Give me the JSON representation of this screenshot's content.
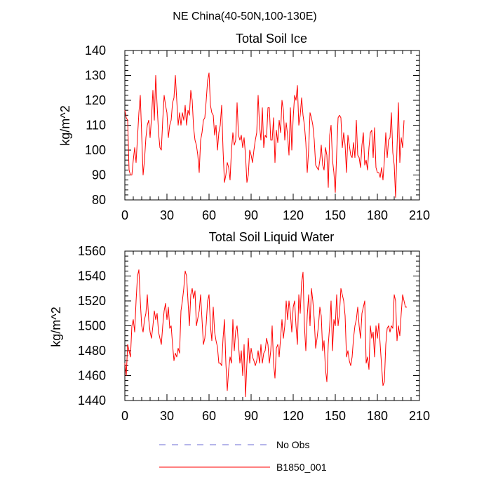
{
  "figure": {
    "suptitle": "NE China(40-50N,100-130E)"
  },
  "legend": {
    "entries": [
      {
        "label": "No Obs",
        "color": "#6b6bd6",
        "style": "dashed"
      },
      {
        "label": "B1850_001",
        "color": "#ff0000",
        "style": "solid"
      }
    ]
  },
  "chart_data": [
    {
      "type": "line",
      "title": "Total Soil Ice",
      "xlabel": "",
      "ylabel": "kg/m^2",
      "xlim": [
        0,
        210
      ],
      "ylim": [
        80,
        140
      ],
      "xticks": [
        0,
        30,
        60,
        90,
        120,
        150,
        180,
        210
      ],
      "yticks": [
        80,
        90,
        100,
        110,
        120,
        130,
        140
      ],
      "series": [
        {
          "name": "B1850_001",
          "color": "#ff0000",
          "x_start": 0,
          "x_step": 1,
          "values": [
            116,
            113,
            112,
            92,
            90,
            90,
            96,
            101,
            95,
            105,
            115,
            122,
            106,
            90,
            96,
            105,
            110,
            112,
            105,
            113,
            124,
            112,
            130,
            118,
            107,
            101,
            100,
            112,
            122,
            118,
            115,
            105,
            110,
            112,
            119,
            121,
            130,
            120,
            110,
            115,
            110,
            115,
            112,
            118,
            110,
            116,
            114,
            124,
            120,
            109,
            104,
            102,
            98,
            91,
            104,
            107,
            112,
            113,
            120,
            128,
            131,
            118,
            115,
            114,
            106,
            110,
            100,
            107,
            110,
            118,
            100,
            87,
            90,
            95,
            93,
            88,
            100,
            107,
            102,
            104,
            119,
            106,
            104,
            106,
            101,
            105,
            98,
            87,
            90,
            100,
            98,
            95,
            100,
            104,
            107,
            122,
            110,
            104,
            117,
            101,
            106,
            105,
            117,
            117,
            104,
            104,
            113,
            95,
            108,
            103,
            112,
            107,
            120,
            116,
            104,
            111,
            106,
            98,
            117,
            100,
            113,
            122,
            120,
            126,
            110,
            114,
            121,
            114,
            110,
            103,
            91,
            100,
            115,
            113,
            110,
            104,
            94,
            93,
            92,
            96,
            102,
            94,
            92,
            101,
            98,
            85,
            106,
            110,
            96,
            91,
            83,
            99,
            113,
            114,
            113,
            101,
            107,
            102,
            91,
            106,
            102,
            98,
            97,
            103,
            97,
            112,
            98,
            97,
            93,
            102,
            107,
            94,
            96,
            92,
            101,
            107,
            108,
            97,
            109,
            93,
            91,
            91,
            89,
            93,
            88,
            96,
            107,
            97,
            104,
            105,
            115,
            99,
            94,
            81,
            101,
            119,
            95,
            105,
            101,
            112
          ]
        }
      ]
    },
    {
      "type": "line",
      "title": "Total Soil Liquid Water",
      "xlabel": "",
      "ylabel": "kg/m^2",
      "xlim": [
        0,
        210
      ],
      "ylim": [
        1440,
        1560
      ],
      "xticks": [
        0,
        30,
        60,
        90,
        120,
        150,
        180,
        210
      ],
      "yticks": [
        1440,
        1460,
        1480,
        1500,
        1520,
        1540,
        1560
      ],
      "series": [
        {
          "name": "B1850_001",
          "color": "#ff0000",
          "x_start": 0,
          "x_step": 1,
          "values": [
            1470,
            1460,
            1485,
            1480,
            1475,
            1500,
            1505,
            1495,
            1520,
            1540,
            1545,
            1520,
            1500,
            1495,
            1505,
            1510,
            1525,
            1505,
            1495,
            1490,
            1500,
            1512,
            1505,
            1510,
            1495,
            1490,
            1485,
            1500,
            1512,
            1518,
            1505,
            1515,
            1498,
            1500,
            1485,
            1472,
            1478,
            1475,
            1482,
            1478,
            1512,
            1520,
            1530,
            1544,
            1540,
            1520,
            1500,
            1525,
            1530,
            1522,
            1528,
            1500,
            1506,
            1512,
            1525,
            1505,
            1485,
            1490,
            1502,
            1520,
            1525,
            1500,
            1488,
            1515,
            1495,
            1488,
            1483,
            1470,
            1470,
            1468,
            1490,
            1505,
            1470,
            1448,
            1465,
            1475,
            1470,
            1505,
            1480,
            1496,
            1500,
            1485,
            1470,
            1480,
            1460,
            1485,
            1443,
            1470,
            1490,
            1470,
            1482,
            1475,
            1472,
            1468,
            1472,
            1480,
            1470,
            1485,
            1470,
            1478,
            1480,
            1490,
            1485,
            1470,
            1480,
            1500,
            1470,
            1458,
            1482,
            1485,
            1475,
            1490,
            1505,
            1490,
            1500,
            1520,
            1505,
            1520,
            1510,
            1495,
            1515,
            1520,
            1500,
            1485,
            1525,
            1510,
            1535,
            1543,
            1500,
            1480,
            1508,
            1525,
            1500,
            1530,
            1520,
            1505,
            1482,
            1490,
            1500,
            1515,
            1508,
            1480,
            1488,
            1465,
            1455,
            1485,
            1500,
            1520,
            1480,
            1505,
            1500,
            1525,
            1500,
            1510,
            1530,
            1525,
            1520,
            1508,
            1475,
            1480,
            1472,
            1468,
            1475,
            1490,
            1500,
            1505,
            1515,
            1500,
            1490,
            1510,
            1515,
            1520,
            1470,
            1475,
            1465,
            1500,
            1490,
            1495,
            1475,
            1500,
            1490,
            1502,
            1485,
            1468,
            1452,
            1455,
            1485,
            1498,
            1500,
            1495,
            1500,
            1498,
            1525,
            1520,
            1488,
            1500,
            1492,
            1510,
            1525,
            1520,
            1515,
            1515
          ]
        }
      ]
    }
  ]
}
